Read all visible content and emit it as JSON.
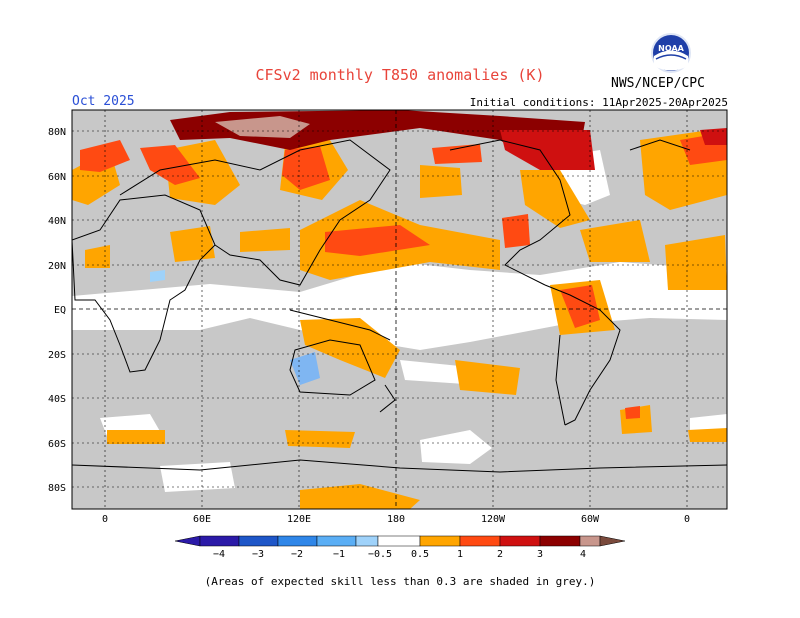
{
  "header": {
    "title": "CFSv2 monthly T850 anomalies (K)",
    "agency": "NWS/NCEP/CPC",
    "period": "Oct 2025",
    "initial_conditions": "Initial conditions: 11Apr2025-20Apr2025",
    "logo_text": "NOAA"
  },
  "axes": {
    "lat_labels": [
      "80N",
      "60N",
      "40N",
      "20N",
      "EQ",
      "20S",
      "40S",
      "60S",
      "80S"
    ],
    "lon_labels": [
      "0",
      "60E",
      "120E",
      "180",
      "120W",
      "60W",
      "0"
    ]
  },
  "legend": {
    "labels": [
      "−4",
      "−3",
      "−2",
      "−1",
      "−0.5",
      "0.5",
      "1",
      "2",
      "3",
      "4"
    ],
    "colors": [
      "#2b1aa8",
      "#1e56c8",
      "#2f86e8",
      "#5aaef5",
      "#9fd2fa",
      "#ffffff",
      "#ffa500",
      "#ff4a12",
      "#cf1010",
      "#8c0000",
      "#c8968c",
      "#7a4a3c"
    ],
    "skill_grey": "#c8c8c8"
  },
  "footnote": "(Areas of expected skill less than 0.3 are shaded in grey.)"
}
